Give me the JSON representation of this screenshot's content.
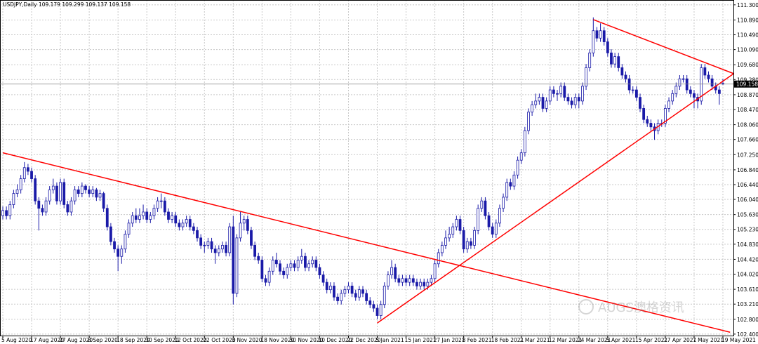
{
  "chart_data": {
    "type": "candlestick",
    "title": "USDJPY,Daily",
    "watermark": "AUGS澳格资讯",
    "color": "#1a1aa8",
    "grid": true,
    "ylim": [
      102.36,
      111.43
    ],
    "yticks": [
      {
        "value": 111.3,
        "label": "111.300"
      },
      {
        "value": 110.89,
        "label": "110.890"
      },
      {
        "value": 110.49,
        "label": "110.490"
      },
      {
        "value": 110.09,
        "label": "110.090"
      },
      {
        "value": 109.68,
        "label": "109.680"
      },
      {
        "value": 109.28,
        "label": "109.280"
      },
      {
        "value": 108.87,
        "label": "108.870"
      },
      {
        "value": 108.47,
        "label": "108.470"
      },
      {
        "value": 108.06,
        "label": "108.060"
      },
      {
        "value": 107.66,
        "label": "107.660"
      },
      {
        "value": 107.25,
        "label": "107.250"
      },
      {
        "value": 106.84,
        "label": "106.840"
      },
      {
        "value": 106.44,
        "label": "106.440"
      },
      {
        "value": 106.04,
        "label": "106.040"
      },
      {
        "value": 105.63,
        "label": "105.630"
      },
      {
        "value": 105.23,
        "label": "105.230"
      },
      {
        "value": 104.83,
        "label": "104.830"
      },
      {
        "value": 104.42,
        "label": "104.420"
      },
      {
        "value": 104.02,
        "label": "104.020"
      },
      {
        "value": 103.61,
        "label": "103.610"
      },
      {
        "value": 103.21,
        "label": "103.210"
      },
      {
        "value": 102.8,
        "label": "102.800"
      },
      {
        "value": 102.4,
        "label": "102.400"
      }
    ],
    "categories": [
      "5 Aug 2020",
      null,
      null,
      null,
      null,
      null,
      null,
      null,
      "17 Aug 2020",
      null,
      null,
      null,
      null,
      null,
      null,
      null,
      "27 Aug 2020",
      null,
      null,
      null,
      null,
      null,
      null,
      null,
      "8 Sep 2020",
      null,
      null,
      null,
      null,
      null,
      null,
      null,
      "18 Sep 2020",
      null,
      null,
      null,
      null,
      null,
      null,
      null,
      "30 Sep 2020",
      null,
      null,
      null,
      null,
      null,
      null,
      null,
      "12 Oct 2020",
      null,
      null,
      null,
      null,
      null,
      null,
      null,
      "22 Oct 2020",
      null,
      null,
      null,
      null,
      null,
      null,
      null,
      "3 Nov 2020",
      null,
      null,
      null,
      null,
      null,
      null,
      null,
      "18 Nov 2020",
      null,
      null,
      null,
      null,
      null,
      null,
      null,
      "30 Nov 2020",
      null,
      null,
      null,
      null,
      null,
      null,
      null,
      "10 Dec 2020",
      null,
      null,
      null,
      null,
      null,
      null,
      null,
      "22 Dec 2020",
      null,
      null,
      null,
      null,
      null,
      null,
      null,
      "5 Jan 2021",
      null,
      null,
      null,
      null,
      null,
      null,
      null,
      "15 Jan 2021",
      null,
      null,
      null,
      null,
      null,
      null,
      null,
      "27 Jan 2021",
      null,
      null,
      null,
      null,
      null,
      null,
      null,
      "8 Feb 2021",
      null,
      null,
      null,
      null,
      null,
      null,
      null,
      "18 Feb 2021",
      null,
      null,
      null,
      null,
      null,
      null,
      null,
      "2 Mar 2021",
      null,
      null,
      null,
      null,
      null,
      null,
      null,
      "12 Mar 2021",
      null,
      null,
      null,
      null,
      null,
      null,
      null,
      "24 Mar 2021",
      null,
      null,
      null,
      null,
      null,
      null,
      null,
      "5 Apr 2021",
      null,
      null,
      null,
      null,
      null,
      null,
      null,
      "15 Apr 2021",
      null,
      null,
      null,
      null,
      null,
      null,
      null,
      "27 Apr 2021",
      null,
      null,
      null,
      null,
      null,
      null,
      null,
      "7 May 2021",
      null,
      null,
      null,
      null,
      null,
      null,
      null,
      "19 May 2021"
    ],
    "open": [
      105.6,
      105.74,
      105.6,
      105.9,
      106.2,
      106.3,
      106.6,
      106.9,
      106.8,
      106.6,
      106.0,
      105.8,
      105.7,
      106.0,
      106.3,
      106.4,
      106.0,
      106.5,
      105.9,
      105.7,
      106.0,
      106.3,
      106.2,
      106.4,
      106.3,
      106.2,
      106.3,
      106.1,
      106.2,
      105.8,
      105.3,
      104.9,
      104.7,
      104.5,
      104.7,
      105.1,
      105.4,
      105.6,
      105.5,
      105.6,
      105.7,
      105.5,
      105.6,
      105.8,
      106.0,
      106.0,
      105.7,
      105.5,
      105.6,
      105.4,
      105.3,
      105.4,
      105.5,
      105.3,
      105.2,
      105.0,
      104.8,
      104.8,
      104.9,
      104.7,
      104.6,
      104.7,
      104.8,
      104.6,
      105.3,
      103.5,
      105.0,
      105.4,
      105.5,
      105.2,
      104.8,
      104.5,
      104.4,
      103.9,
      103.8,
      104.1,
      104.4,
      104.3,
      104.1,
      104.0,
      104.2,
      104.3,
      104.2,
      104.4,
      104.5,
      104.2,
      104.3,
      104.4,
      104.2,
      104.0,
      103.8,
      103.6,
      103.7,
      103.4,
      103.3,
      103.5,
      103.6,
      103.7,
      103.5,
      103.4,
      103.6,
      103.5,
      103.3,
      103.2,
      103.1,
      102.9,
      103.2,
      103.7,
      104.0,
      104.2,
      103.9,
      103.8,
      103.9,
      103.8,
      103.9,
      103.8,
      103.7,
      103.8,
      103.7,
      103.8,
      103.9,
      104.3,
      104.6,
      104.8,
      105.0,
      105.1,
      105.3,
      105.5,
      105.2,
      104.7,
      104.9,
      104.8,
      105.2,
      105.8,
      106.0,
      105.6,
      105.3,
      105.1,
      105.4,
      105.8,
      106.1,
      106.5,
      106.4,
      106.7,
      107.1,
      107.3,
      107.9,
      108.4,
      108.6,
      108.7,
      108.8,
      108.5,
      108.7,
      109.0,
      108.9,
      108.9,
      109.1,
      108.8,
      108.7,
      108.6,
      108.8,
      108.7,
      109.1,
      109.6,
      110.0,
      110.6,
      110.4,
      110.6,
      110.3,
      110.0,
      109.7,
      109.9,
      109.6,
      109.4,
      109.3,
      109.0,
      109.0,
      108.8,
      108.5,
      108.2,
      108.1,
      108.0,
      107.9,
      108.1,
      108.1,
      108.5,
      108.7,
      108.9,
      109.1,
      109.3,
      109.3,
      109.0,
      108.9,
      108.8,
      108.7,
      109.6,
      109.4,
      109.3,
      109.1,
      109.0,
      109.179
    ],
    "high": [
      105.85,
      105.85,
      106.0,
      106.3,
      106.45,
      106.7,
      107.05,
      107.0,
      106.9,
      106.7,
      106.1,
      105.9,
      106.1,
      106.4,
      106.6,
      106.5,
      106.6,
      106.6,
      106.0,
      106.1,
      106.4,
      106.4,
      106.5,
      106.45,
      106.4,
      106.4,
      106.35,
      106.3,
      106.25,
      105.9,
      105.4,
      105.0,
      104.8,
      104.8,
      105.2,
      105.5,
      105.7,
      105.8,
      105.8,
      105.9,
      105.8,
      105.7,
      105.9,
      106.1,
      106.2,
      106.1,
      105.8,
      105.7,
      105.7,
      105.5,
      105.5,
      105.6,
      105.6,
      105.4,
      105.3,
      105.1,
      104.9,
      105.0,
      105.0,
      104.8,
      104.8,
      104.9,
      104.9,
      105.4,
      105.6,
      105.1,
      105.7,
      105.6,
      105.6,
      105.3,
      104.9,
      104.6,
      104.5,
      104.0,
      104.2,
      104.5,
      104.6,
      104.4,
      104.2,
      104.3,
      104.4,
      104.4,
      104.5,
      104.7,
      104.6,
      104.4,
      104.5,
      104.5,
      104.3,
      104.1,
      103.9,
      103.8,
      103.8,
      103.5,
      103.6,
      103.7,
      103.8,
      103.8,
      103.6,
      103.7,
      103.7,
      103.6,
      103.4,
      103.3,
      103.2,
      103.3,
      103.8,
      104.1,
      104.4,
      104.3,
      104.0,
      104.0,
      104.0,
      104.0,
      104.0,
      103.9,
      103.9,
      103.9,
      103.9,
      104.0,
      104.4,
      104.7,
      104.9,
      105.2,
      105.3,
      105.4,
      105.6,
      105.6,
      105.3,
      105.0,
      105.0,
      105.3,
      105.9,
      106.1,
      106.1,
      105.7,
      105.4,
      105.5,
      105.9,
      106.2,
      106.6,
      106.6,
      106.8,
      107.2,
      107.4,
      108.0,
      108.5,
      108.7,
      108.9,
      108.9,
      108.9,
      108.8,
      109.1,
      109.1,
      109.0,
      109.2,
      109.2,
      108.9,
      108.8,
      108.9,
      108.9,
      109.2,
      109.7,
      110.1,
      110.96,
      110.7,
      110.8,
      110.7,
      110.4,
      110.1,
      110.0,
      110.0,
      109.7,
      109.5,
      109.4,
      109.1,
      109.1,
      108.9,
      108.6,
      108.3,
      108.2,
      108.1,
      108.2,
      108.2,
      108.6,
      108.8,
      109.0,
      109.2,
      109.4,
      109.4,
      109.4,
      109.1,
      109.0,
      108.9,
      109.7,
      109.7,
      109.5,
      109.4,
      109.2,
      109.1,
      109.299
    ],
    "low": [
      105.5,
      105.5,
      105.5,
      105.8,
      106.1,
      106.2,
      106.5,
      106.7,
      106.5,
      105.9,
      105.2,
      105.6,
      105.6,
      105.9,
      106.2,
      105.9,
      105.9,
      105.8,
      105.6,
      105.6,
      105.9,
      106.1,
      106.1,
      106.2,
      106.1,
      106.1,
      106.0,
      106.0,
      105.7,
      105.2,
      104.8,
      104.6,
      104.1,
      104.3,
      104.6,
      105.0,
      105.3,
      105.4,
      105.4,
      105.5,
      105.4,
      105.4,
      105.5,
      105.7,
      105.8,
      105.6,
      105.4,
      105.4,
      105.3,
      105.2,
      105.2,
      105.3,
      105.2,
      105.1,
      104.9,
      104.7,
      104.6,
      104.7,
      104.6,
      104.3,
      104.5,
      104.6,
      104.5,
      104.5,
      103.2,
      103.4,
      104.9,
      105.2,
      105.1,
      104.7,
      104.4,
      104.3,
      103.8,
      103.7,
      103.7,
      104.0,
      104.2,
      104.0,
      103.9,
      103.9,
      104.1,
      104.1,
      104.1,
      104.3,
      104.1,
      104.1,
      104.2,
      104.1,
      103.9,
      103.7,
      103.5,
      103.5,
      103.3,
      103.2,
      103.2,
      103.4,
      103.5,
      103.4,
      103.3,
      103.3,
      103.4,
      103.2,
      103.1,
      103.0,
      102.8,
      102.8,
      103.1,
      103.6,
      103.9,
      103.8,
      103.7,
      103.7,
      103.7,
      103.7,
      103.7,
      103.6,
      103.6,
      103.6,
      103.6,
      103.7,
      103.8,
      104.2,
      104.5,
      104.7,
      104.9,
      105.0,
      105.2,
      105.1,
      104.6,
      104.6,
      104.7,
      104.7,
      105.1,
      105.7,
      105.5,
      105.2,
      105.0,
      105.0,
      105.3,
      105.7,
      106.0,
      106.3,
      106.3,
      106.6,
      107.0,
      107.2,
      107.8,
      108.3,
      108.5,
      108.6,
      108.4,
      108.4,
      108.6,
      108.8,
      108.7,
      108.8,
      108.7,
      108.6,
      108.5,
      108.5,
      108.5,
      108.6,
      109.0,
      109.5,
      109.9,
      110.3,
      110.3,
      110.2,
      109.9,
      109.6,
      109.6,
      109.5,
      109.3,
      109.2,
      108.9,
      108.9,
      108.7,
      108.4,
      108.1,
      108.0,
      107.9,
      107.65,
      107.8,
      108.0,
      108.0,
      108.4,
      108.6,
      108.8,
      109.0,
      109.2,
      108.9,
      108.8,
      108.5,
      108.5,
      108.6,
      109.3,
      109.2,
      109.0,
      108.9,
      108.6,
      109.137
    ],
    "close": [
      105.74,
      105.6,
      105.9,
      106.2,
      106.3,
      106.6,
      106.9,
      106.8,
      106.6,
      106.0,
      105.8,
      105.7,
      106.0,
      106.3,
      106.4,
      106.0,
      106.5,
      105.9,
      105.7,
      106.0,
      106.3,
      106.2,
      106.4,
      106.3,
      106.2,
      106.3,
      106.1,
      106.2,
      105.8,
      105.3,
      104.9,
      104.7,
      104.5,
      104.7,
      105.1,
      105.4,
      105.6,
      105.5,
      105.6,
      105.7,
      105.5,
      105.6,
      105.8,
      106.0,
      106.0,
      105.7,
      105.5,
      105.6,
      105.4,
      105.3,
      105.4,
      105.5,
      105.3,
      105.2,
      105.0,
      104.8,
      104.8,
      104.9,
      104.7,
      104.6,
      104.7,
      104.8,
      104.6,
      105.3,
      103.5,
      105.0,
      105.4,
      105.5,
      105.2,
      104.8,
      104.5,
      104.4,
      103.9,
      103.8,
      104.1,
      104.4,
      104.3,
      104.1,
      104.0,
      104.2,
      104.3,
      104.2,
      104.4,
      104.5,
      104.2,
      104.3,
      104.4,
      104.2,
      104.0,
      103.8,
      103.6,
      103.7,
      103.4,
      103.3,
      103.5,
      103.6,
      103.7,
      103.5,
      103.4,
      103.6,
      103.5,
      103.3,
      103.2,
      103.1,
      102.9,
      103.2,
      103.7,
      104.0,
      104.2,
      103.9,
      103.8,
      103.9,
      103.8,
      103.9,
      103.8,
      103.7,
      103.8,
      103.7,
      103.8,
      103.9,
      104.3,
      104.6,
      104.8,
      105.0,
      105.1,
      105.3,
      105.5,
      105.2,
      104.7,
      104.9,
      104.8,
      105.2,
      105.8,
      106.0,
      105.6,
      105.3,
      105.1,
      105.4,
      105.8,
      106.1,
      106.5,
      106.4,
      106.7,
      107.1,
      107.3,
      107.9,
      108.4,
      108.6,
      108.7,
      108.8,
      108.5,
      108.7,
      109.0,
      108.9,
      108.9,
      109.1,
      108.8,
      108.7,
      108.6,
      108.8,
      108.7,
      109.1,
      109.6,
      110.0,
      110.6,
      110.4,
      110.6,
      110.3,
      110.0,
      109.7,
      109.9,
      109.6,
      109.4,
      109.3,
      109.0,
      109.0,
      108.8,
      108.5,
      108.2,
      108.1,
      108.0,
      107.9,
      108.1,
      108.1,
      108.5,
      108.7,
      108.9,
      109.1,
      109.3,
      109.3,
      109.0,
      108.9,
      108.8,
      108.7,
      109.6,
      109.4,
      109.3,
      109.1,
      109.0,
      108.9,
      109.158
    ],
    "trendline_color": "#ff0000",
    "trendlines": [
      {
        "start": [
          0,
          107.3
        ],
        "end": [
          202,
          102.45
        ]
      },
      {
        "start": [
          104,
          102.7
        ],
        "end": [
          203,
          109.44
        ]
      },
      {
        "start": [
          164,
          110.9
        ],
        "end": [
          203,
          109.44
        ]
      }
    ]
  }
}
